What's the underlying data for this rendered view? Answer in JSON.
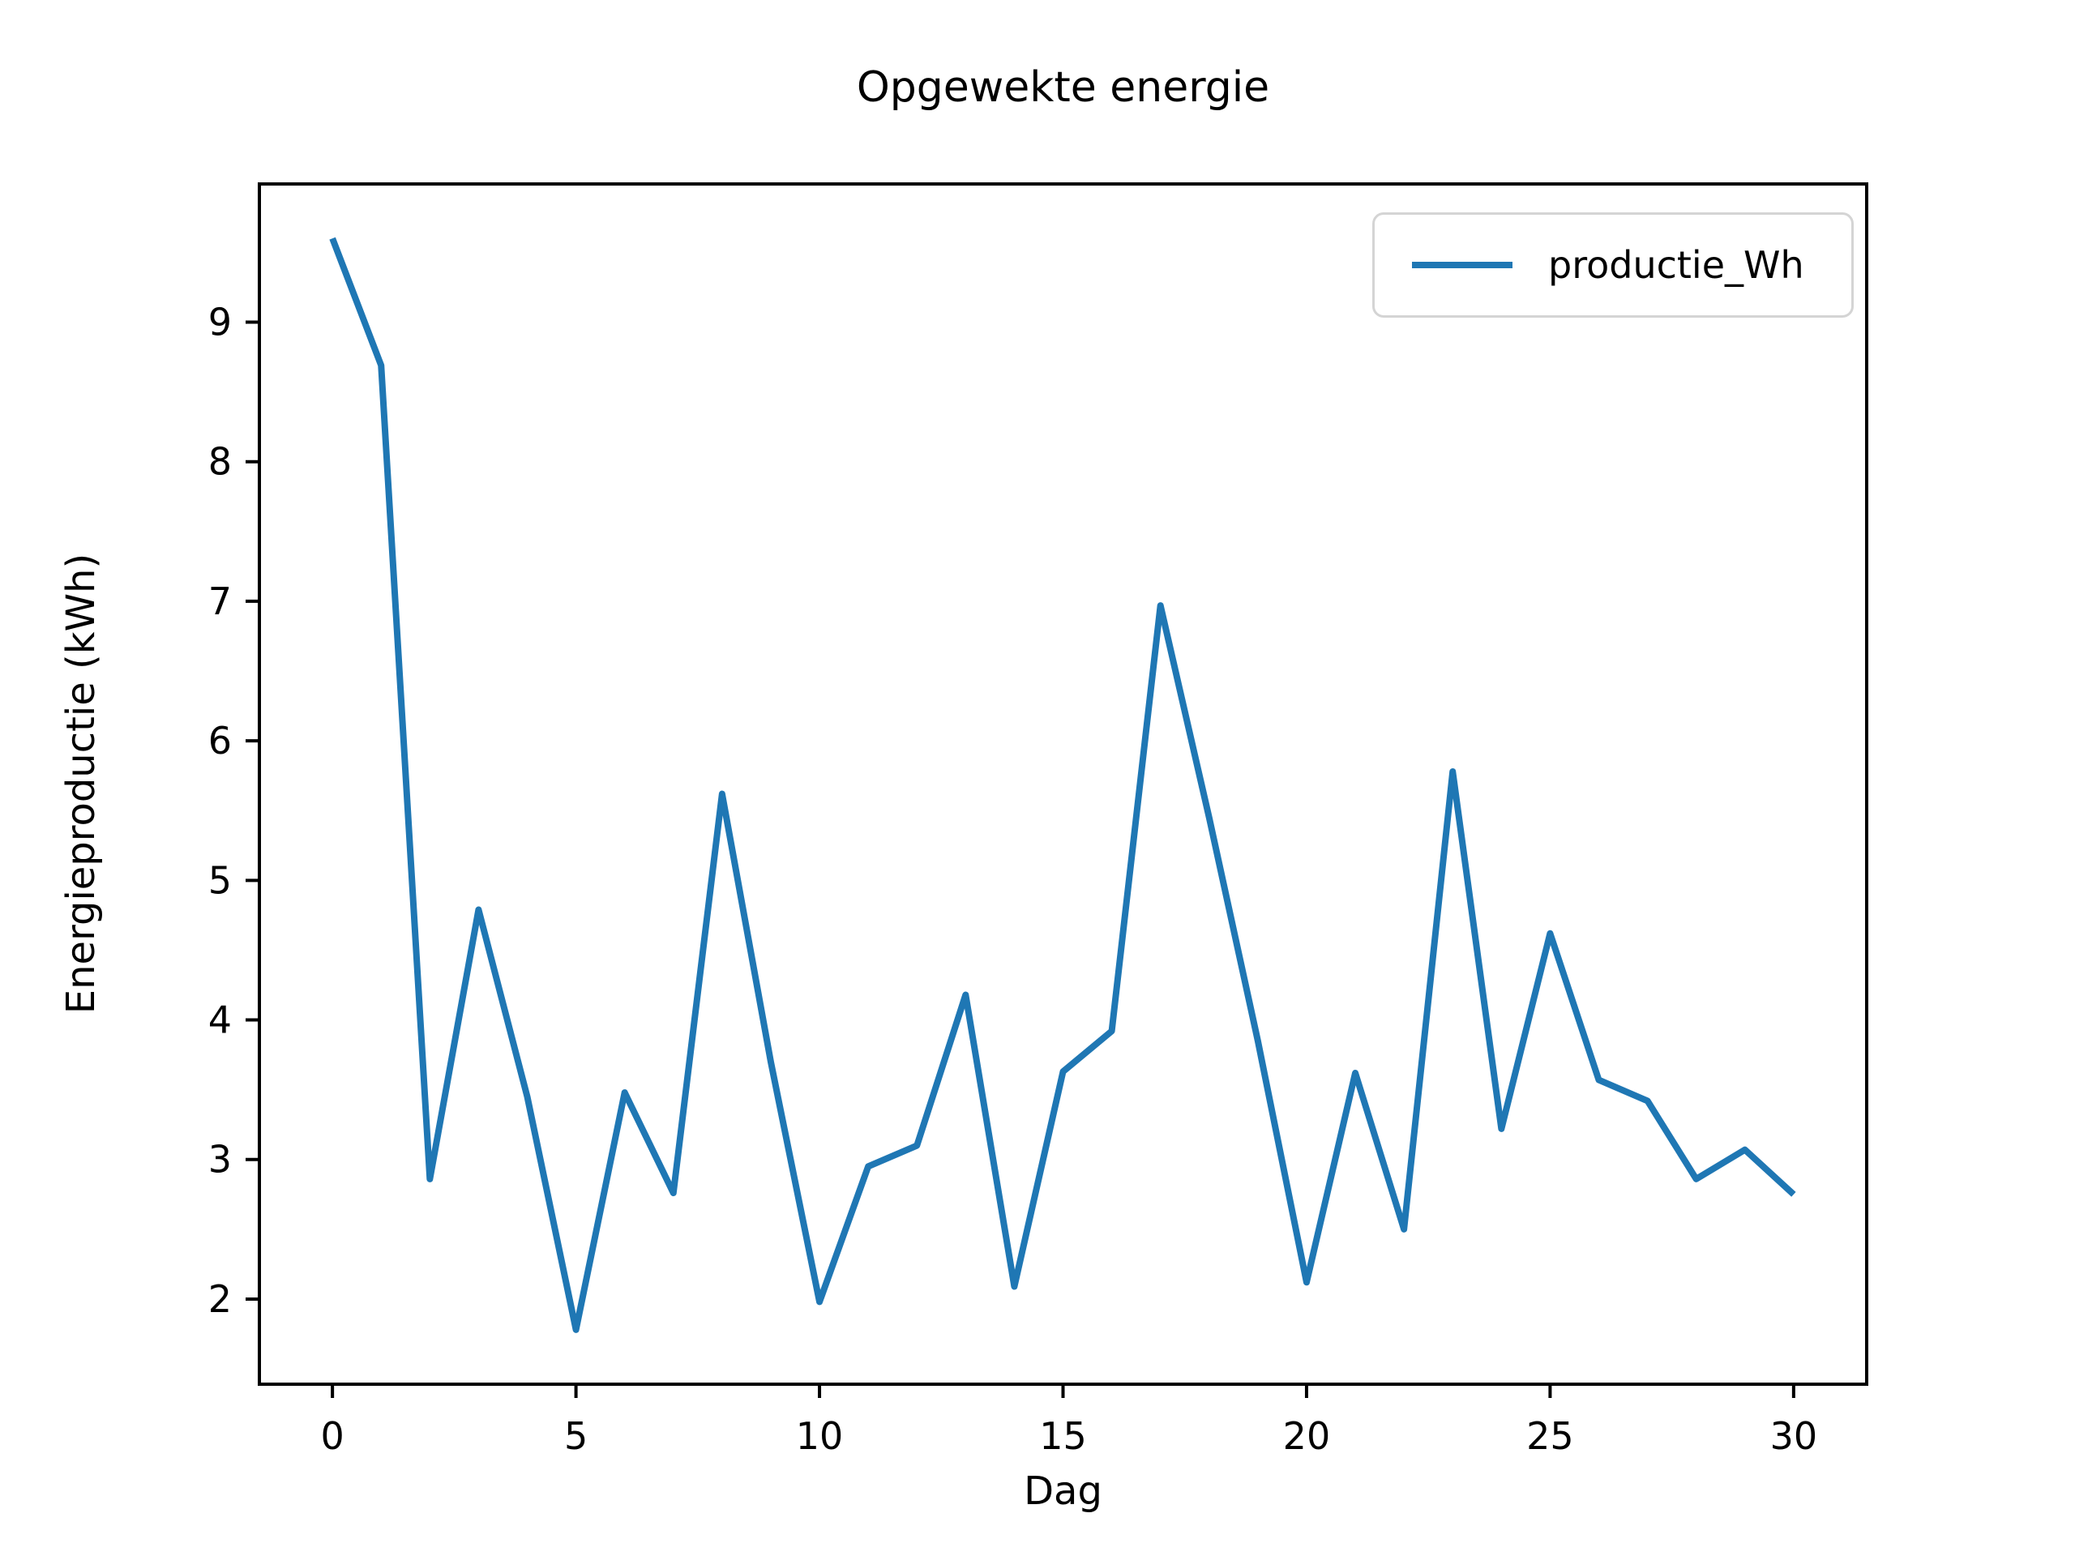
{
  "title": "Opgewekte energie",
  "axes": {
    "xlabel": "Dag",
    "ylabel": "Energieproductie (kWh)"
  },
  "legend": {
    "label": "productie_Wh"
  },
  "colors": {
    "line": "#1f77b4",
    "spine": "#000000",
    "tick_label": "#000000",
    "background": "#ffffff",
    "legend_border": "#d4d4d4"
  },
  "chart_data": {
    "type": "line",
    "title": "Opgewekte energie",
    "xlabel": "Dag",
    "ylabel": "Energieproductie (kWh)",
    "grid": false,
    "legend_position": "upper right",
    "xlim": [
      -1.5,
      31.5
    ],
    "ylim": [
      1.39,
      9.99
    ],
    "x_ticks": [
      0,
      5,
      10,
      15,
      20,
      25,
      30
    ],
    "y_ticks": [
      2,
      3,
      4,
      5,
      6,
      7,
      8,
      9
    ],
    "series": [
      {
        "name": "productie_Wh",
        "color": "#1f77b4",
        "x": [
          0,
          1,
          2,
          3,
          4,
          5,
          6,
          7,
          8,
          9,
          10,
          11,
          12,
          13,
          14,
          15,
          16,
          17,
          18,
          19,
          20,
          21,
          22,
          23,
          24,
          25,
          26,
          27,
          28,
          29,
          30
        ],
        "y": [
          9.6,
          8.69,
          2.86,
          4.79,
          3.45,
          1.78,
          3.48,
          2.76,
          5.62,
          3.7,
          1.98,
          2.95,
          3.1,
          4.18,
          2.09,
          3.63,
          3.92,
          6.97,
          5.45,
          3.85,
          2.12,
          3.62,
          2.5,
          5.78,
          3.22,
          4.62,
          3.57,
          3.42,
          2.86,
          3.07,
          2.75
        ]
      }
    ]
  }
}
